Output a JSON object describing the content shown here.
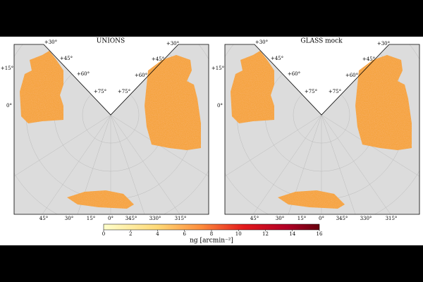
{
  "panels": [
    {
      "title": "UNIONS",
      "dec_labels": [
        "+30°",
        "+45°",
        "+60°",
        "+75°",
        "+75°",
        "+60°",
        "+45°",
        "+30°",
        "+15°",
        "0°"
      ],
      "ra_labels": [
        "45°",
        "30°",
        "15°",
        "0°",
        "345°",
        "330°",
        "315°"
      ]
    },
    {
      "title": "GLASS mock",
      "dec_labels": [
        "+30°",
        "+45°",
        "+60°",
        "+75°",
        "+75°",
        "+60°",
        "+45°",
        "+30°",
        "+15°",
        "0°"
      ],
      "ra_labels": [
        "45°",
        "30°",
        "15°",
        "0°",
        "345°",
        "330°",
        "315°"
      ]
    }
  ],
  "colorbar": {
    "label": "ng [arcmin⁻²]",
    "lim": [
      0,
      16
    ],
    "ticks": [
      0,
      2,
      4,
      6,
      8,
      10,
      12,
      14,
      16
    ]
  }
}
